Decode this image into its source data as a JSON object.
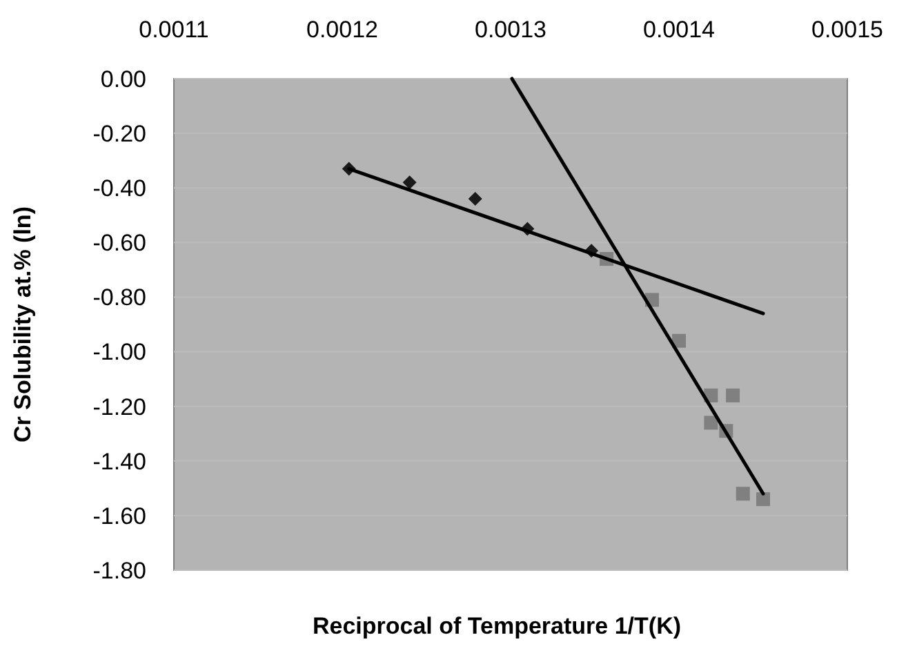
{
  "chart_data": {
    "type": "scatter",
    "xlabel": "Reciprocal of Temperature  1/T(K)",
    "ylabel": "Cr Solubility at.%  (ln)",
    "xlim": [
      0.0011,
      0.0015
    ],
    "xticks": [
      0.0011,
      0.0012,
      0.0013,
      0.0014,
      0.0015
    ],
    "ylim": [
      -1.8,
      0
    ],
    "yticks": [
      {
        "value": 0,
        "label": "0.00"
      },
      {
        "value": -0.2,
        "label": "-0.20"
      },
      {
        "value": -0.4,
        "label": "-0.40"
      },
      {
        "value": -0.6,
        "label": "-0.60"
      },
      {
        "value": -0.8,
        "label": "-0.80"
      },
      {
        "value": -1,
        "label": "-1.00"
      },
      {
        "value": -1.2,
        "label": "-1.20"
      },
      {
        "value": -1.4,
        "label": "-1.40"
      },
      {
        "value": -1.6,
        "label": "-1.60"
      },
      {
        "value": -1.8,
        "label": "-1.80"
      }
    ],
    "grid": "y",
    "series": [
      {
        "marker": "square",
        "color": "#808080",
        "x": [
          0.001357,
          0.001384,
          0.0014,
          0.001419,
          0.001432,
          0.001419,
          0.001428,
          0.001438,
          0.00145
        ],
        "values": [
          -0.66,
          -0.81,
          -0.96,
          -1.16,
          -1.16,
          -1.26,
          -1.29,
          -1.52,
          -1.54
        ]
      },
      {
        "marker": "diamond",
        "color": "#1a1a1a",
        "x": [
          0.001204,
          0.00124,
          0.001279,
          0.00131,
          0.001348
        ],
        "values": [
          -0.33,
          -0.38,
          -0.44,
          -0.55,
          -0.63
        ]
      },
      {
        "type": "line",
        "marker": "none",
        "line_style": "solid",
        "color": "#000000",
        "x": [
          0.001204,
          0.00145
        ],
        "values": [
          -0.33,
          -0.86
        ]
      },
      {
        "type": "line",
        "marker": "none",
        "line_style": "solid",
        "color": "#000000",
        "x": [
          0.0013008,
          0.00145
        ],
        "values": [
          0,
          -1.52
        ]
      }
    ]
  }
}
